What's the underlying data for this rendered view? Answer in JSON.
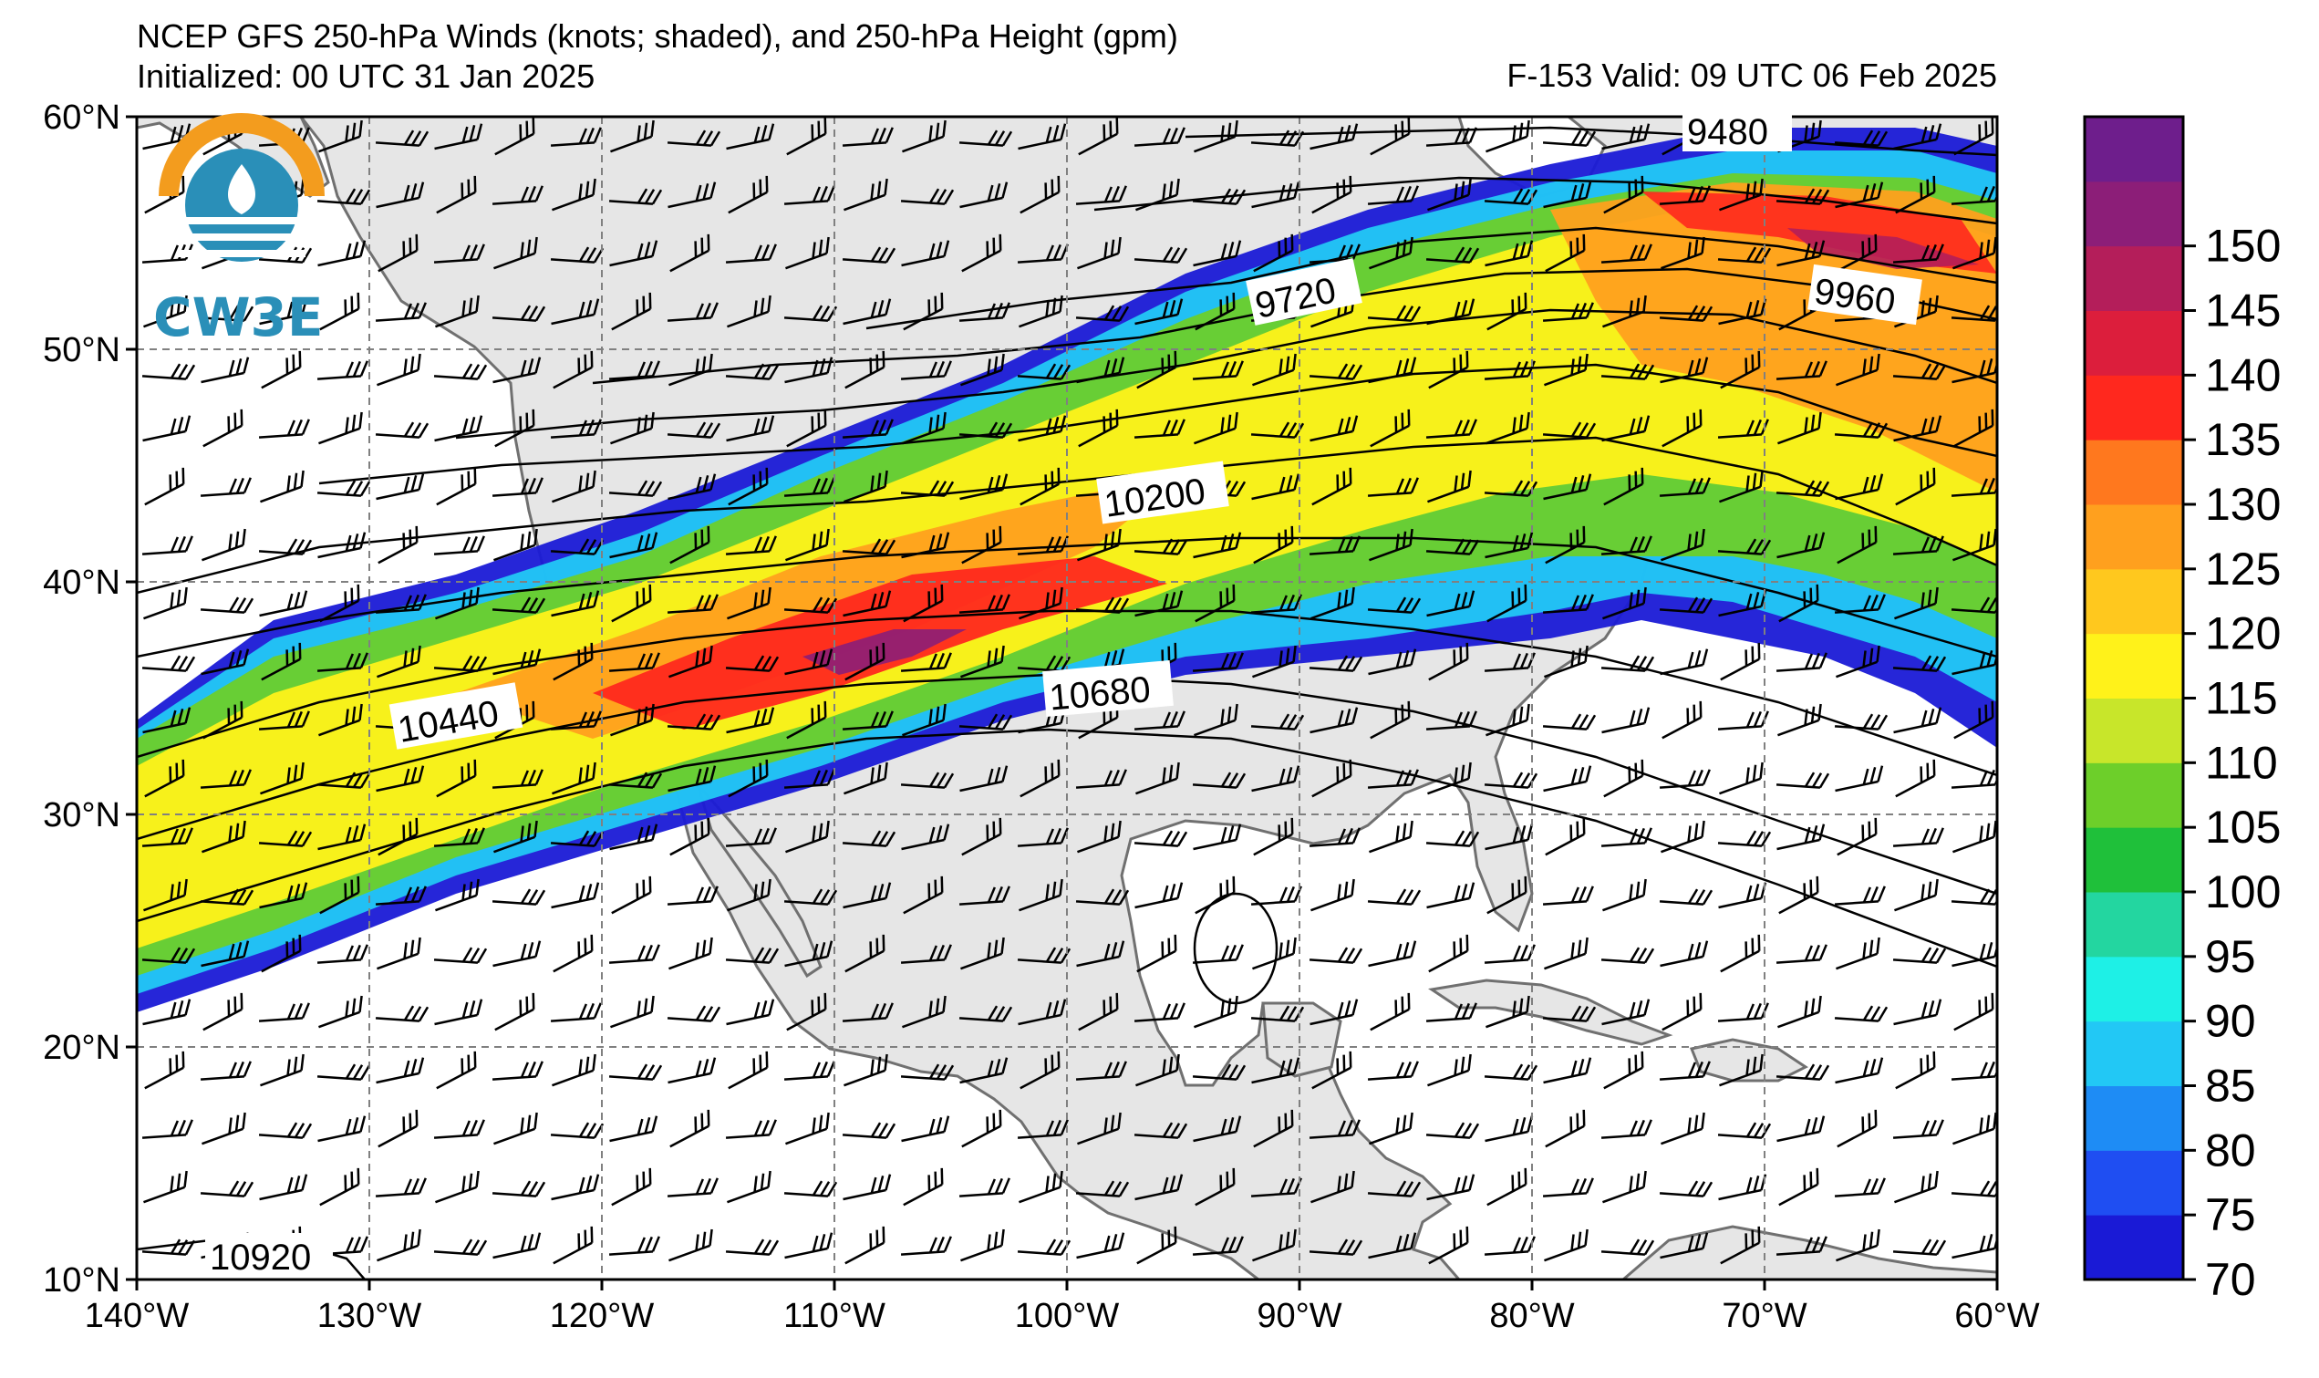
{
  "title": {
    "line1": "NCEP GFS 250-hPa Winds (knots; shaded), and 250-hPa Height (gpm)",
    "line2": "Initialized: 00 UTC 31 Jan 2025",
    "valid": "F-153  Valid: 09 UTC 06 Feb 2025"
  },
  "logo": {
    "text": "CW3E",
    "icon": "cw3e-logo-icon"
  },
  "axes": {
    "lon_labels": [
      "140°W",
      "130°W",
      "120°W",
      "110°W",
      "100°W",
      "90°W",
      "80°W",
      "70°W",
      "60°W"
    ],
    "lat_labels": [
      "60°N",
      "50°N",
      "40°N",
      "30°N",
      "20°N",
      "10°N"
    ],
    "lon_range": [
      -140,
      -60
    ],
    "lat_range": [
      10,
      60
    ],
    "grid": "dashed"
  },
  "colorbar": {
    "labels": [
      "70",
      "75",
      "80",
      "85",
      "90",
      "95",
      "100",
      "105",
      "110",
      "115",
      "120",
      "125",
      "130",
      "135",
      "140",
      "145",
      "150"
    ],
    "levels": [
      70,
      75,
      80,
      85,
      90,
      95,
      100,
      105,
      110,
      115,
      120,
      125,
      130,
      135,
      140,
      145,
      150
    ],
    "colors": [
      "#1a1ad6",
      "#1f4ef2",
      "#1e8cf5",
      "#22c8f5",
      "#1ef0e6",
      "#23d6a0",
      "#1fc03a",
      "#6dcf2a",
      "#c8e62a",
      "#fff21a",
      "#ffc81e",
      "#ffa01e",
      "#ff781e",
      "#ff281e",
      "#dc1e3c",
      "#b41e5a",
      "#8c1e78"
    ],
    "top_color": "#6e1e8c"
  },
  "height_labels": [
    "9480",
    "9720",
    "9960",
    "10200",
    "10440",
    "10680",
    "10920"
  ],
  "colors": {
    "land": "#e6e6e6",
    "ocean": "#ffffff",
    "coast": "#707070",
    "grid": "#808080"
  }
}
